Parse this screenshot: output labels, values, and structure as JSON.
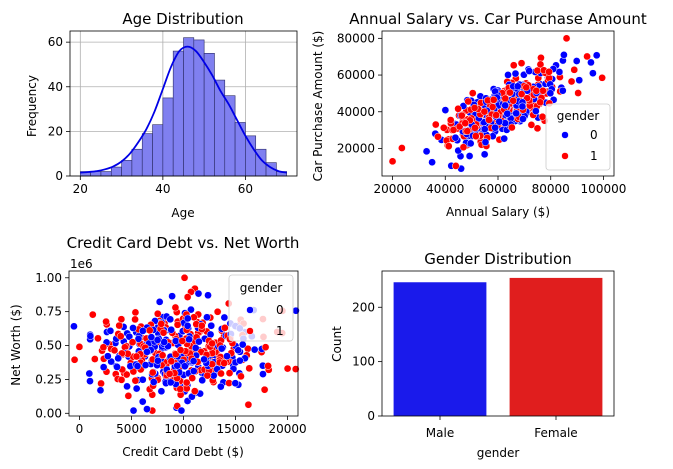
{
  "colors": {
    "hist_fill": "#8080f0",
    "hist_edge": "#2a2a66",
    "kde": "#0000e6",
    "male": "#0000ff",
    "female": "#ff0000",
    "bar_male": "#1a1aeb",
    "bar_female": "#e01e1e"
  },
  "chart_data": [
    {
      "id": "age",
      "type": "bar",
      "title": "Age Distribution",
      "xlabel": "Age",
      "ylabel": "Frequency",
      "xlim": [
        17.5,
        72.5
      ],
      "ylim": [
        0,
        65
      ],
      "xticks": [
        20,
        40,
        60
      ],
      "yticks": [
        0,
        20,
        40,
        60
      ],
      "grid": true,
      "bin_edges": [
        20,
        22.5,
        25,
        27.5,
        30,
        32.5,
        35,
        37.5,
        40,
        42.5,
        45,
        47.5,
        50,
        52.5,
        55,
        57.5,
        60,
        62.5,
        65,
        67.5,
        70
      ],
      "values": [
        2,
        2,
        2,
        4,
        7,
        12,
        19,
        23,
        35,
        56,
        62,
        61,
        55,
        43,
        36,
        24,
        18,
        12,
        6,
        2
      ],
      "kde": {
        "x": [
          20,
          22,
          24,
          26,
          28,
          30,
          32,
          34,
          36,
          38,
          40,
          42,
          44,
          46,
          48,
          50,
          52,
          54,
          56,
          58,
          60,
          62,
          64,
          66,
          68,
          70
        ],
        "y": [
          1.5,
          1.8,
          2.2,
          3,
          4.3,
          6.5,
          10,
          15,
          21,
          29,
          39,
          49,
          56,
          58,
          56,
          51,
          45,
          38,
          32,
          25,
          18,
          12,
          7,
          4,
          2.2,
          1.5
        ]
      }
    },
    {
      "id": "salary",
      "type": "scatter",
      "title": "Annual Salary vs. Car Purchase Amount",
      "xlabel": "Annual Salary ($)",
      "ylabel": "Car Purchase Amount ($)",
      "xlim": [
        16000,
        104000
      ],
      "ylim": [
        5000,
        84000
      ],
      "xticks": [
        20000,
        40000,
        60000,
        80000,
        100000
      ],
      "yticks": [
        20000,
        40000,
        60000,
        80000
      ],
      "x_cloud": {
        "center": 62000,
        "spread": 11000
      },
      "y_model": {
        "intercept": 2000,
        "slope": 0.65,
        "noise": 7000
      },
      "legend": {
        "title": "gender",
        "placement": "lower-right",
        "entries": [
          "0",
          "1"
        ]
      },
      "extra_points": [
        {
          "x": 20000,
          "y": 13000,
          "group": 1
        },
        {
          "x": 99500,
          "y": 58500,
          "group": 1
        },
        {
          "x": 86000,
          "y": 80000,
          "group": 1
        },
        {
          "x": 35000,
          "y": 12500,
          "group": 0
        },
        {
          "x": 46000,
          "y": 9000,
          "group": 0
        },
        {
          "x": 44000,
          "y": 10500,
          "group": 1
        },
        {
          "x": 96000,
          "y": 61000,
          "group": 0
        },
        {
          "x": 85000,
          "y": 71000,
          "group": 0
        }
      ]
    },
    {
      "id": "debt",
      "type": "scatter",
      "title": "Credit Card Debt vs. Net Worth",
      "xlabel": "Credit Card Debt ($)",
      "ylabel": "Net Worth ($)",
      "offset_text": "1e6",
      "xlim": [
        -1000,
        21000
      ],
      "ylim": [
        -0.02,
        1.05
      ],
      "xticks": [
        0,
        5000,
        10000,
        15000,
        20000
      ],
      "yticks": [
        0.0,
        0.25,
        0.5,
        0.75,
        1.0
      ],
      "ytick_labels": [
        "0.00",
        "0.25",
        "0.50",
        "0.75",
        "1.00"
      ],
      "x_cloud": {
        "center": 9700,
        "spread": 3800
      },
      "y_cloud": {
        "center": 0.44,
        "spread": 0.17
      },
      "legend": {
        "title": "gender",
        "placement": "upper-right",
        "entries": [
          "0",
          "1"
        ]
      },
      "extra_points": [
        {
          "x": 10100,
          "y": 1.0,
          "group": 1
        },
        {
          "x": 0,
          "y": 0.49,
          "group": 1
        },
        {
          "x": 20000,
          "y": 0.33,
          "group": 1
        },
        {
          "x": 5200,
          "y": 0.02,
          "group": 0
        },
        {
          "x": 9800,
          "y": 0.02,
          "group": 0
        },
        {
          "x": 19000,
          "y": 0.6,
          "group": 1
        }
      ]
    },
    {
      "id": "gender",
      "type": "bar",
      "title": "Gender Distribution",
      "xlabel": "gender",
      "ylabel": "Count",
      "categories": [
        "Male",
        "Female"
      ],
      "values": [
        246,
        254
      ],
      "ylim": [
        0,
        266.7
      ],
      "yticks": [
        0,
        100,
        200
      ]
    }
  ]
}
